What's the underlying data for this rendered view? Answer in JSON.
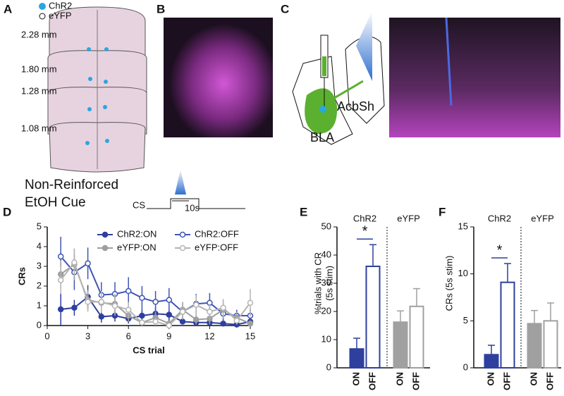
{
  "panels": {
    "labels": [
      "A",
      "B",
      "C",
      "D",
      "E",
      "F"
    ],
    "a": {
      "legend": [
        "ChR2",
        "eYFP"
      ],
      "levels": [
        "2.28 mm",
        "1.80 mm",
        "1.28 mm",
        "1.08 mm"
      ]
    },
    "c": {
      "regions": [
        "BLA",
        "AcbSh"
      ]
    },
    "protocol": {
      "title": [
        "Non-Reinforced",
        "EtOH Cue"
      ],
      "cs": "CS",
      "duration": "10s"
    }
  },
  "chart_data": [
    {
      "type": "line",
      "xlabel": "CS trial",
      "ylabel": "CRs",
      "x": [
        1,
        2,
        3,
        4,
        5,
        6,
        7,
        8,
        9,
        10,
        11,
        12,
        13,
        14,
        15
      ],
      "xlim": [
        0,
        15
      ],
      "xticks": [
        0,
        3,
        6,
        9,
        12,
        15
      ],
      "ylim": [
        0,
        5
      ],
      "yticks": [
        0,
        1,
        2,
        3,
        4,
        5
      ],
      "series": [
        {
          "name": "ChR2:ON",
          "color": "#2e3f9e",
          "marker_filled": true,
          "values": [
            0.82,
            0.9,
            1.45,
            0.45,
            0.5,
            0.35,
            0.5,
            0.6,
            0.55,
            0.2,
            0.15,
            0.15,
            0.1,
            0.05,
            0.2
          ],
          "errors": [
            0.8,
            0.4,
            0.6,
            0.3,
            0.3,
            0.25,
            0.3,
            0.35,
            0.3,
            0.15,
            0.15,
            0.1,
            0.1,
            0.05,
            0.15
          ]
        },
        {
          "name": "ChR2:OFF",
          "color": "#3f55b5",
          "marker_filled": false,
          "values": [
            3.5,
            2.7,
            3.15,
            1.55,
            1.6,
            1.75,
            1.4,
            1.2,
            1.3,
            0.7,
            1.1,
            1.15,
            0.6,
            0.5,
            0.5
          ],
          "errors": [
            1.0,
            0.9,
            0.8,
            0.65,
            0.6,
            0.7,
            0.6,
            0.55,
            0.6,
            0.4,
            0.5,
            0.5,
            0.4,
            0.3,
            0.35
          ]
        },
        {
          "name": "eYFP:ON",
          "color": "#9e9e9e",
          "marker_filled": true,
          "values": [
            2.6,
            3.1,
            1.3,
            1.15,
            1.1,
            0.5,
            0.15,
            0.4,
            0.1,
            0.8,
            0.3,
            0.35,
            0.8,
            0.4,
            0.1
          ],
          "errors": [
            0.7,
            0.8,
            0.5,
            0.5,
            0.5,
            0.3,
            0.15,
            0.3,
            0.1,
            0.4,
            0.25,
            0.3,
            0.45,
            0.3,
            0.1
          ]
        },
        {
          "name": "eYFP:OFF",
          "color": "#b4b4b4",
          "marker_filled": false,
          "values": [
            2.3,
            3.2,
            1.2,
            1.2,
            1.0,
            0.8,
            0.15,
            0.2,
            0.0,
            0.7,
            1.05,
            0.7,
            0.9,
            0.25,
            1.15
          ],
          "errors": [
            0.7,
            0.7,
            0.5,
            0.55,
            0.5,
            0.4,
            0.15,
            0.2,
            0.05,
            0.4,
            0.5,
            0.4,
            0.45,
            0.2,
            0.7
          ]
        }
      ]
    },
    {
      "type": "bar",
      "ylabel": [
        "%trials with CR",
        "(5s stim)"
      ],
      "groups": [
        "ChR2",
        "eYFP"
      ],
      "categories": [
        "ON",
        "OFF",
        "ON",
        "OFF"
      ],
      "values": [
        6.7,
        36,
        16.2,
        21.8
      ],
      "errors": [
        3.8,
        7.7,
        4,
        6.3
      ],
      "colors": [
        "#2e3f9e",
        "#2e3f9e",
        "#a0a0a0",
        "#a0a0a0"
      ],
      "filled": [
        true,
        false,
        true,
        false
      ],
      "ylim": [
        0,
        50
      ],
      "yticks": [
        0,
        10,
        20,
        30,
        40,
        50
      ],
      "significance": "*",
      "significance_color": "#2e3f9e"
    },
    {
      "type": "bar",
      "ylabel": [
        "CRs (5s stim)"
      ],
      "groups": [
        "ChR2",
        "eYFP"
      ],
      "categories": [
        "ON",
        "OFF",
        "ON",
        "OFF"
      ],
      "values": [
        1.4,
        9.1,
        4.7,
        5.0
      ],
      "errors": [
        1.0,
        2.0,
        1.4,
        1.9
      ],
      "colors": [
        "#2e3f9e",
        "#2e3f9e",
        "#a0a0a0",
        "#a0a0a0"
      ],
      "filled": [
        true,
        false,
        true,
        false
      ],
      "ylim": [
        0,
        15
      ],
      "yticks": [
        0,
        5,
        10,
        15
      ],
      "significance": "*",
      "significance_color": "#2e3f9e"
    }
  ]
}
